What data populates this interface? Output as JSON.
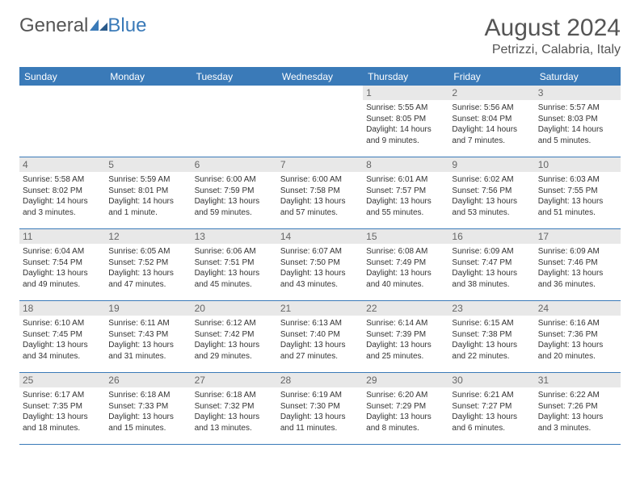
{
  "brand": {
    "part1": "General",
    "part2": "Blue",
    "part1_color": "#555555",
    "part2_color": "#3a7ab8"
  },
  "title": "August 2024",
  "location": "Petrizzi, Calabria, Italy",
  "colors": {
    "header_bg": "#3a7ab8",
    "header_text": "#ffffff",
    "row_number_bg": "#e8e8e8",
    "border": "#3a7ab8",
    "body_text": "#333333"
  },
  "day_names": [
    "Sunday",
    "Monday",
    "Tuesday",
    "Wednesday",
    "Thursday",
    "Friday",
    "Saturday"
  ],
  "weeks": [
    [
      null,
      null,
      null,
      null,
      {
        "n": 1,
        "sr": "5:55 AM",
        "ss": "8:05 PM",
        "dl": "14 hours and 9 minutes."
      },
      {
        "n": 2,
        "sr": "5:56 AM",
        "ss": "8:04 PM",
        "dl": "14 hours and 7 minutes."
      },
      {
        "n": 3,
        "sr": "5:57 AM",
        "ss": "8:03 PM",
        "dl": "14 hours and 5 minutes."
      }
    ],
    [
      {
        "n": 4,
        "sr": "5:58 AM",
        "ss": "8:02 PM",
        "dl": "14 hours and 3 minutes."
      },
      {
        "n": 5,
        "sr": "5:59 AM",
        "ss": "8:01 PM",
        "dl": "14 hours and 1 minute."
      },
      {
        "n": 6,
        "sr": "6:00 AM",
        "ss": "7:59 PM",
        "dl": "13 hours and 59 minutes."
      },
      {
        "n": 7,
        "sr": "6:00 AM",
        "ss": "7:58 PM",
        "dl": "13 hours and 57 minutes."
      },
      {
        "n": 8,
        "sr": "6:01 AM",
        "ss": "7:57 PM",
        "dl": "13 hours and 55 minutes."
      },
      {
        "n": 9,
        "sr": "6:02 AM",
        "ss": "7:56 PM",
        "dl": "13 hours and 53 minutes."
      },
      {
        "n": 10,
        "sr": "6:03 AM",
        "ss": "7:55 PM",
        "dl": "13 hours and 51 minutes."
      }
    ],
    [
      {
        "n": 11,
        "sr": "6:04 AM",
        "ss": "7:54 PM",
        "dl": "13 hours and 49 minutes."
      },
      {
        "n": 12,
        "sr": "6:05 AM",
        "ss": "7:52 PM",
        "dl": "13 hours and 47 minutes."
      },
      {
        "n": 13,
        "sr": "6:06 AM",
        "ss": "7:51 PM",
        "dl": "13 hours and 45 minutes."
      },
      {
        "n": 14,
        "sr": "6:07 AM",
        "ss": "7:50 PM",
        "dl": "13 hours and 43 minutes."
      },
      {
        "n": 15,
        "sr": "6:08 AM",
        "ss": "7:49 PM",
        "dl": "13 hours and 40 minutes."
      },
      {
        "n": 16,
        "sr": "6:09 AM",
        "ss": "7:47 PM",
        "dl": "13 hours and 38 minutes."
      },
      {
        "n": 17,
        "sr": "6:09 AM",
        "ss": "7:46 PM",
        "dl": "13 hours and 36 minutes."
      }
    ],
    [
      {
        "n": 18,
        "sr": "6:10 AM",
        "ss": "7:45 PM",
        "dl": "13 hours and 34 minutes."
      },
      {
        "n": 19,
        "sr": "6:11 AM",
        "ss": "7:43 PM",
        "dl": "13 hours and 31 minutes."
      },
      {
        "n": 20,
        "sr": "6:12 AM",
        "ss": "7:42 PM",
        "dl": "13 hours and 29 minutes."
      },
      {
        "n": 21,
        "sr": "6:13 AM",
        "ss": "7:40 PM",
        "dl": "13 hours and 27 minutes."
      },
      {
        "n": 22,
        "sr": "6:14 AM",
        "ss": "7:39 PM",
        "dl": "13 hours and 25 minutes."
      },
      {
        "n": 23,
        "sr": "6:15 AM",
        "ss": "7:38 PM",
        "dl": "13 hours and 22 minutes."
      },
      {
        "n": 24,
        "sr": "6:16 AM",
        "ss": "7:36 PM",
        "dl": "13 hours and 20 minutes."
      }
    ],
    [
      {
        "n": 25,
        "sr": "6:17 AM",
        "ss": "7:35 PM",
        "dl": "13 hours and 18 minutes."
      },
      {
        "n": 26,
        "sr": "6:18 AM",
        "ss": "7:33 PM",
        "dl": "13 hours and 15 minutes."
      },
      {
        "n": 27,
        "sr": "6:18 AM",
        "ss": "7:32 PM",
        "dl": "13 hours and 13 minutes."
      },
      {
        "n": 28,
        "sr": "6:19 AM",
        "ss": "7:30 PM",
        "dl": "13 hours and 11 minutes."
      },
      {
        "n": 29,
        "sr": "6:20 AM",
        "ss": "7:29 PM",
        "dl": "13 hours and 8 minutes."
      },
      {
        "n": 30,
        "sr": "6:21 AM",
        "ss": "7:27 PM",
        "dl": "13 hours and 6 minutes."
      },
      {
        "n": 31,
        "sr": "6:22 AM",
        "ss": "7:26 PM",
        "dl": "13 hours and 3 minutes."
      }
    ]
  ],
  "labels": {
    "sunrise": "Sunrise:",
    "sunset": "Sunset:",
    "daylight": "Daylight:"
  }
}
